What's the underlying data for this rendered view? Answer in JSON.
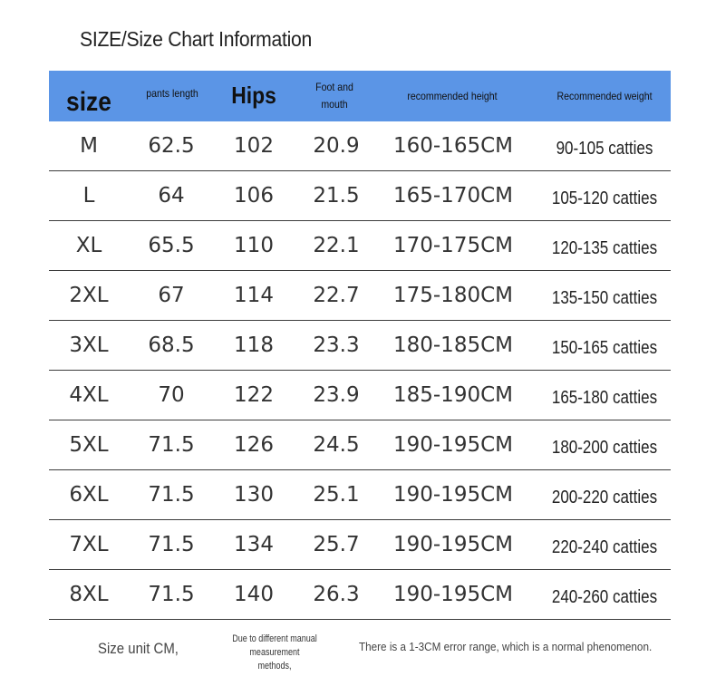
{
  "title": "SIZE/Size Chart Information",
  "header": {
    "size": "size",
    "pants_length": "pants length",
    "hips": "Hips",
    "foot_line1": "Foot and",
    "foot_line2": "mouth",
    "height": "recommended height",
    "weight": "Recommended weight"
  },
  "rows": [
    {
      "size": "M",
      "pants_length": "62.5",
      "hips": "102",
      "foot_mouth": "20.9",
      "height": "160-165CM",
      "weight": "90-105 catties"
    },
    {
      "size": "L",
      "pants_length": "64",
      "hips": "106",
      "foot_mouth": "21.5",
      "height": "165-170CM",
      "weight": "105-120 catties"
    },
    {
      "size": "XL",
      "pants_length": "65.5",
      "hips": "110",
      "foot_mouth": "22.1",
      "height": "170-175CM",
      "weight": "120-135 catties"
    },
    {
      "size": "2XL",
      "pants_length": "67",
      "hips": "114",
      "foot_mouth": "22.7",
      "height": "175-180CM",
      "weight": "135-150 catties"
    },
    {
      "size": "3XL",
      "pants_length": "68.5",
      "hips": "118",
      "foot_mouth": "23.3",
      "height": "180-185CM",
      "weight": "150-165 catties"
    },
    {
      "size": "4XL",
      "pants_length": "70",
      "hips": "122",
      "foot_mouth": "23.9",
      "height": "185-190CM",
      "weight": "165-180 catties"
    },
    {
      "size": "5XL",
      "pants_length": "71.5",
      "hips": "126",
      "foot_mouth": "24.5",
      "height": "190-195CM",
      "weight": "180-200 catties"
    },
    {
      "size": "6XL",
      "pants_length": "71.5",
      "hips": "130",
      "foot_mouth": "25.1",
      "height": "190-195CM",
      "weight": "200-220 catties"
    },
    {
      "size": "7XL",
      "pants_length": "71.5",
      "hips": "134",
      "foot_mouth": "25.7",
      "height": "190-195CM",
      "weight": "220-240 catties"
    },
    {
      "size": "8XL",
      "pants_length": "71.5",
      "hips": "140",
      "foot_mouth": "26.3",
      "height": "190-195CM",
      "weight": "240-260 catties"
    }
  ],
  "footer": {
    "unit": "Size unit CM,",
    "note_line1": "Due to different manual measurement",
    "note_line2": "methods,",
    "error": "There is a 1-3CM error range, which is a normal phenomenon."
  },
  "colors": {
    "header_bg": "#5b95e6",
    "row_border": "#3c3c3c"
  }
}
